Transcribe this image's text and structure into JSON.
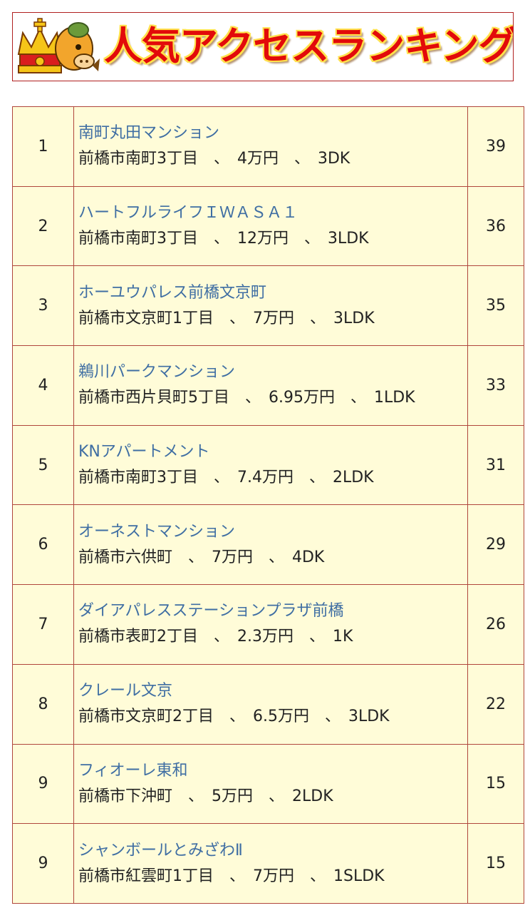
{
  "banner": {
    "title": "人気アクセスランキング"
  },
  "colors": {
    "title_red": "#e20a0a",
    "title_outline": "#ffe14d",
    "cell_background": "#fffcd8",
    "border": "#b0463c",
    "link_blue": "#3f6ea3"
  },
  "icons": {
    "mascot": "crowned-horse-mascot-icon"
  },
  "ranking": [
    {
      "rank": "1",
      "name": "南町丸田マンション",
      "detail": "前橋市南町3丁目　、　4万円　、　3DK",
      "count": "39"
    },
    {
      "rank": "2",
      "name": "ハートフルライフＩＷＡＳＡ１",
      "detail": "前橋市南町3丁目　、　12万円　、　3LDK",
      "count": "36"
    },
    {
      "rank": "3",
      "name": "ホーユウパレス前橋文京町",
      "detail": "前橋市文京町1丁目　、　7万円　、　3LDK",
      "count": "35"
    },
    {
      "rank": "4",
      "name": "鵜川パークマンション",
      "detail": "前橋市西片貝町5丁目　、　6.95万円　、　1LDK",
      "count": "33"
    },
    {
      "rank": "5",
      "name": "KNアパートメント",
      "detail": "前橋市南町3丁目　、　7.4万円　、　2LDK",
      "count": "31"
    },
    {
      "rank": "6",
      "name": "オーネストマンション",
      "detail": "前橋市六供町　、　7万円　、　4DK",
      "count": "29"
    },
    {
      "rank": "7",
      "name": "ダイアパレスステーションプラザ前橋",
      "detail": "前橋市表町2丁目　、　2.3万円　、　1K",
      "count": "26"
    },
    {
      "rank": "8",
      "name": "クレール文京",
      "detail": "前橋市文京町2丁目　、　6.5万円　、　3LDK",
      "count": "22"
    },
    {
      "rank": "9",
      "name": "フィオーレ東和",
      "detail": "前橋市下沖町　、　5万円　、　2LDK",
      "count": "15"
    },
    {
      "rank": "9",
      "name": "シャンボールとみざわⅡ",
      "detail": "前橋市紅雲町1丁目　、　7万円　、　1SLDK",
      "count": "15"
    }
  ]
}
